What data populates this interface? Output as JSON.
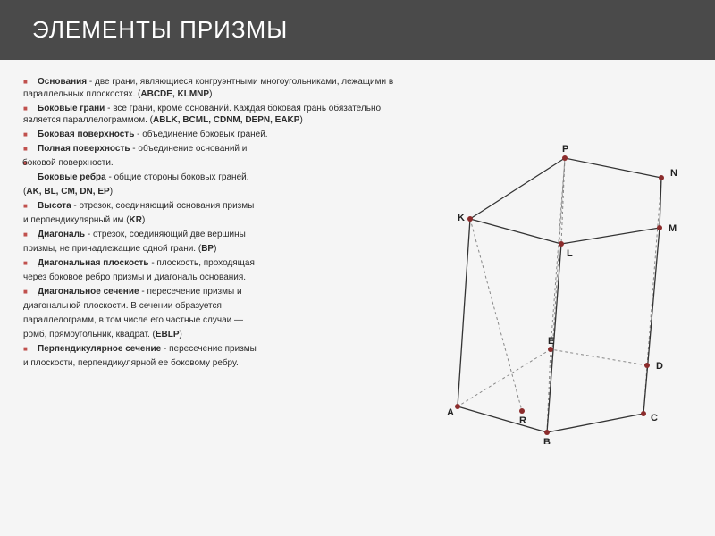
{
  "title": "ЭЛЕМЕНТЫ ПРИЗМЫ",
  "items": [
    {
      "term": "Основания",
      "text": " - две грани, являющиеся конгруэнтными многоугольниками, лежащими в параллельных плоскостях. (",
      "suffix": "ABCDE, KLMNP",
      "tail": ")"
    },
    {
      "term": "Боковые грани",
      "text": " - все грани, кроме оснований. Каждая боковая грань обязательно является параллелограммом. (",
      "suffix": "ABLK, BCML, CDNM, DEPN, EAKP",
      "tail": ")"
    },
    {
      "term": "Боковая поверхность",
      "text": " - объединение боковых граней.",
      "suffix": "",
      "tail": ""
    },
    {
      "term": "Полная поверхность",
      "text": " - объединение оснований и",
      "suffix": "",
      "tail": ""
    }
  ],
  "line_after4": "боковой поверхности.",
  "item5": {
    "term": "Боковые ребра",
    "text": " - общие стороны боковых граней."
  },
  "edges_line": "(",
  "edges": "AK, BL, CM, DN, EP",
  "edges_tail": ")",
  "items2": [
    {
      "term": "Высота",
      "text": " - отрезок, соединяющий основания призмы"
    }
  ],
  "height_line2": "и перпендикулярный им.(",
  "height_code": "KR",
  "height_tail": ")",
  "items3": [
    {
      "term": "Диагональ",
      "text": " - отрезок, соединяющий две вершины"
    }
  ],
  "diag_line2": " призмы, не принадлежащие одной грани. (",
  "diag_code": "BP",
  "diag_tail": ")",
  "items4": [
    {
      "term": "Диагональная плоскость",
      "text": " - плоскость, проходящая"
    }
  ],
  "dp_line2": "через боковое ребро призмы и диагональ основания.",
  "items5": [
    {
      "term": "Диагональное сечение",
      "text": " - пересечение призмы и"
    }
  ],
  "ds_line2": "диагональной плоскости. В сечении образуется",
  "ds_line3": "параллелограмм, в том числе его частные случаи —",
  "ds_line4": "ромб, прямоугольник, квадрат. (",
  "ds_code": "EBLP",
  "ds_tail": ")",
  "items6": [
    {
      "term": "Перпендикулярное сечение",
      "text": " - пересечение призмы"
    }
  ],
  "ps_line2": "и плоскости, перпендикулярной ее боковому ребру.",
  "fig": {
    "A": [
      40,
      318,
      "A",
      -12,
      10
    ],
    "B": [
      140,
      347,
      "B",
      -4,
      14
    ],
    "C": [
      248,
      326,
      "C",
      8,
      8
    ],
    "D": [
      252,
      272,
      "D",
      10,
      4
    ],
    "E": [
      144,
      254,
      "E",
      -3,
      -6
    ],
    "R": [
      112,
      323,
      "R",
      -3,
      14
    ],
    "K": [
      54,
      108,
      "K",
      -14,
      2
    ],
    "L": [
      156,
      136,
      "L",
      6,
      14
    ],
    "M": [
      266,
      118,
      "M",
      10,
      4
    ],
    "N": [
      268,
      62,
      "N",
      10,
      -2
    ],
    "P": [
      160,
      40,
      "P",
      -3,
      -7
    ]
  },
  "solid_edges": [
    [
      "A",
      "B"
    ],
    [
      "B",
      "C"
    ],
    [
      "A",
      "K"
    ],
    [
      "K",
      "L"
    ],
    [
      "L",
      "M"
    ],
    [
      "B",
      "L"
    ],
    [
      "C",
      "M"
    ],
    [
      "M",
      "N"
    ],
    [
      "N",
      "P"
    ],
    [
      "P",
      "K"
    ]
  ],
  "dashed_edges": [
    [
      "C",
      "D"
    ],
    [
      "D",
      "E"
    ],
    [
      "E",
      "A"
    ],
    [
      "D",
      "N"
    ],
    [
      "E",
      "P"
    ],
    [
      "K",
      "R"
    ],
    [
      "P",
      "L"
    ],
    [
      "B",
      "P"
    ],
    [
      "E",
      "B"
    ]
  ],
  "pt_r": 3
}
